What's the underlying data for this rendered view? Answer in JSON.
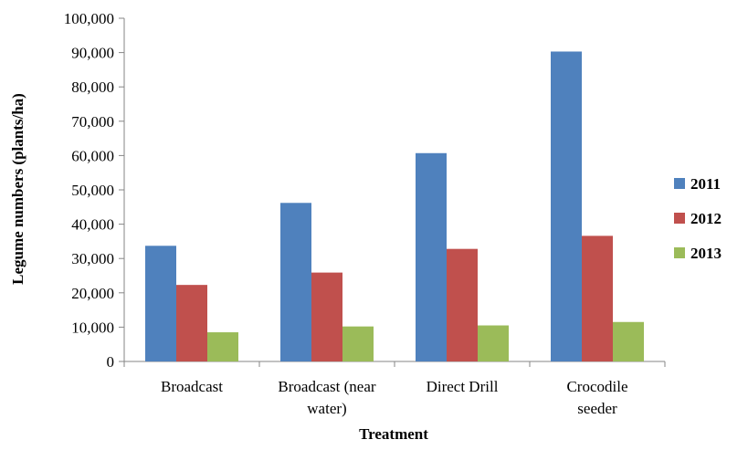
{
  "chart_data": {
    "type": "bar",
    "title": "",
    "xlabel": "Treatment",
    "ylabel": "Legume numbers  (plants/ha)",
    "ylim": [
      0,
      100000
    ],
    "y_ticks": [
      "0",
      "10,000",
      "20,000",
      "30,000",
      "40,000",
      "50,000",
      "60,000",
      "70,000",
      "80,000",
      "90,000",
      "100,000"
    ],
    "categories": [
      [
        "Broadcast"
      ],
      [
        "Broadcast (near",
        "water)"
      ],
      [
        "Direct Drill"
      ],
      [
        "Crocodile",
        "seeder"
      ]
    ],
    "series": [
      {
        "name": "2011",
        "color": "#4F81BD",
        "values": [
          33700,
          46200,
          60700,
          90300
        ]
      },
      {
        "name": "2012",
        "color": "#C0504D",
        "values": [
          22300,
          25900,
          32800,
          36600
        ]
      },
      {
        "name": "2013",
        "color": "#9BBB59",
        "values": [
          8500,
          10200,
          10500,
          11500
        ]
      }
    ],
    "legend_position": "right",
    "grid": false
  }
}
